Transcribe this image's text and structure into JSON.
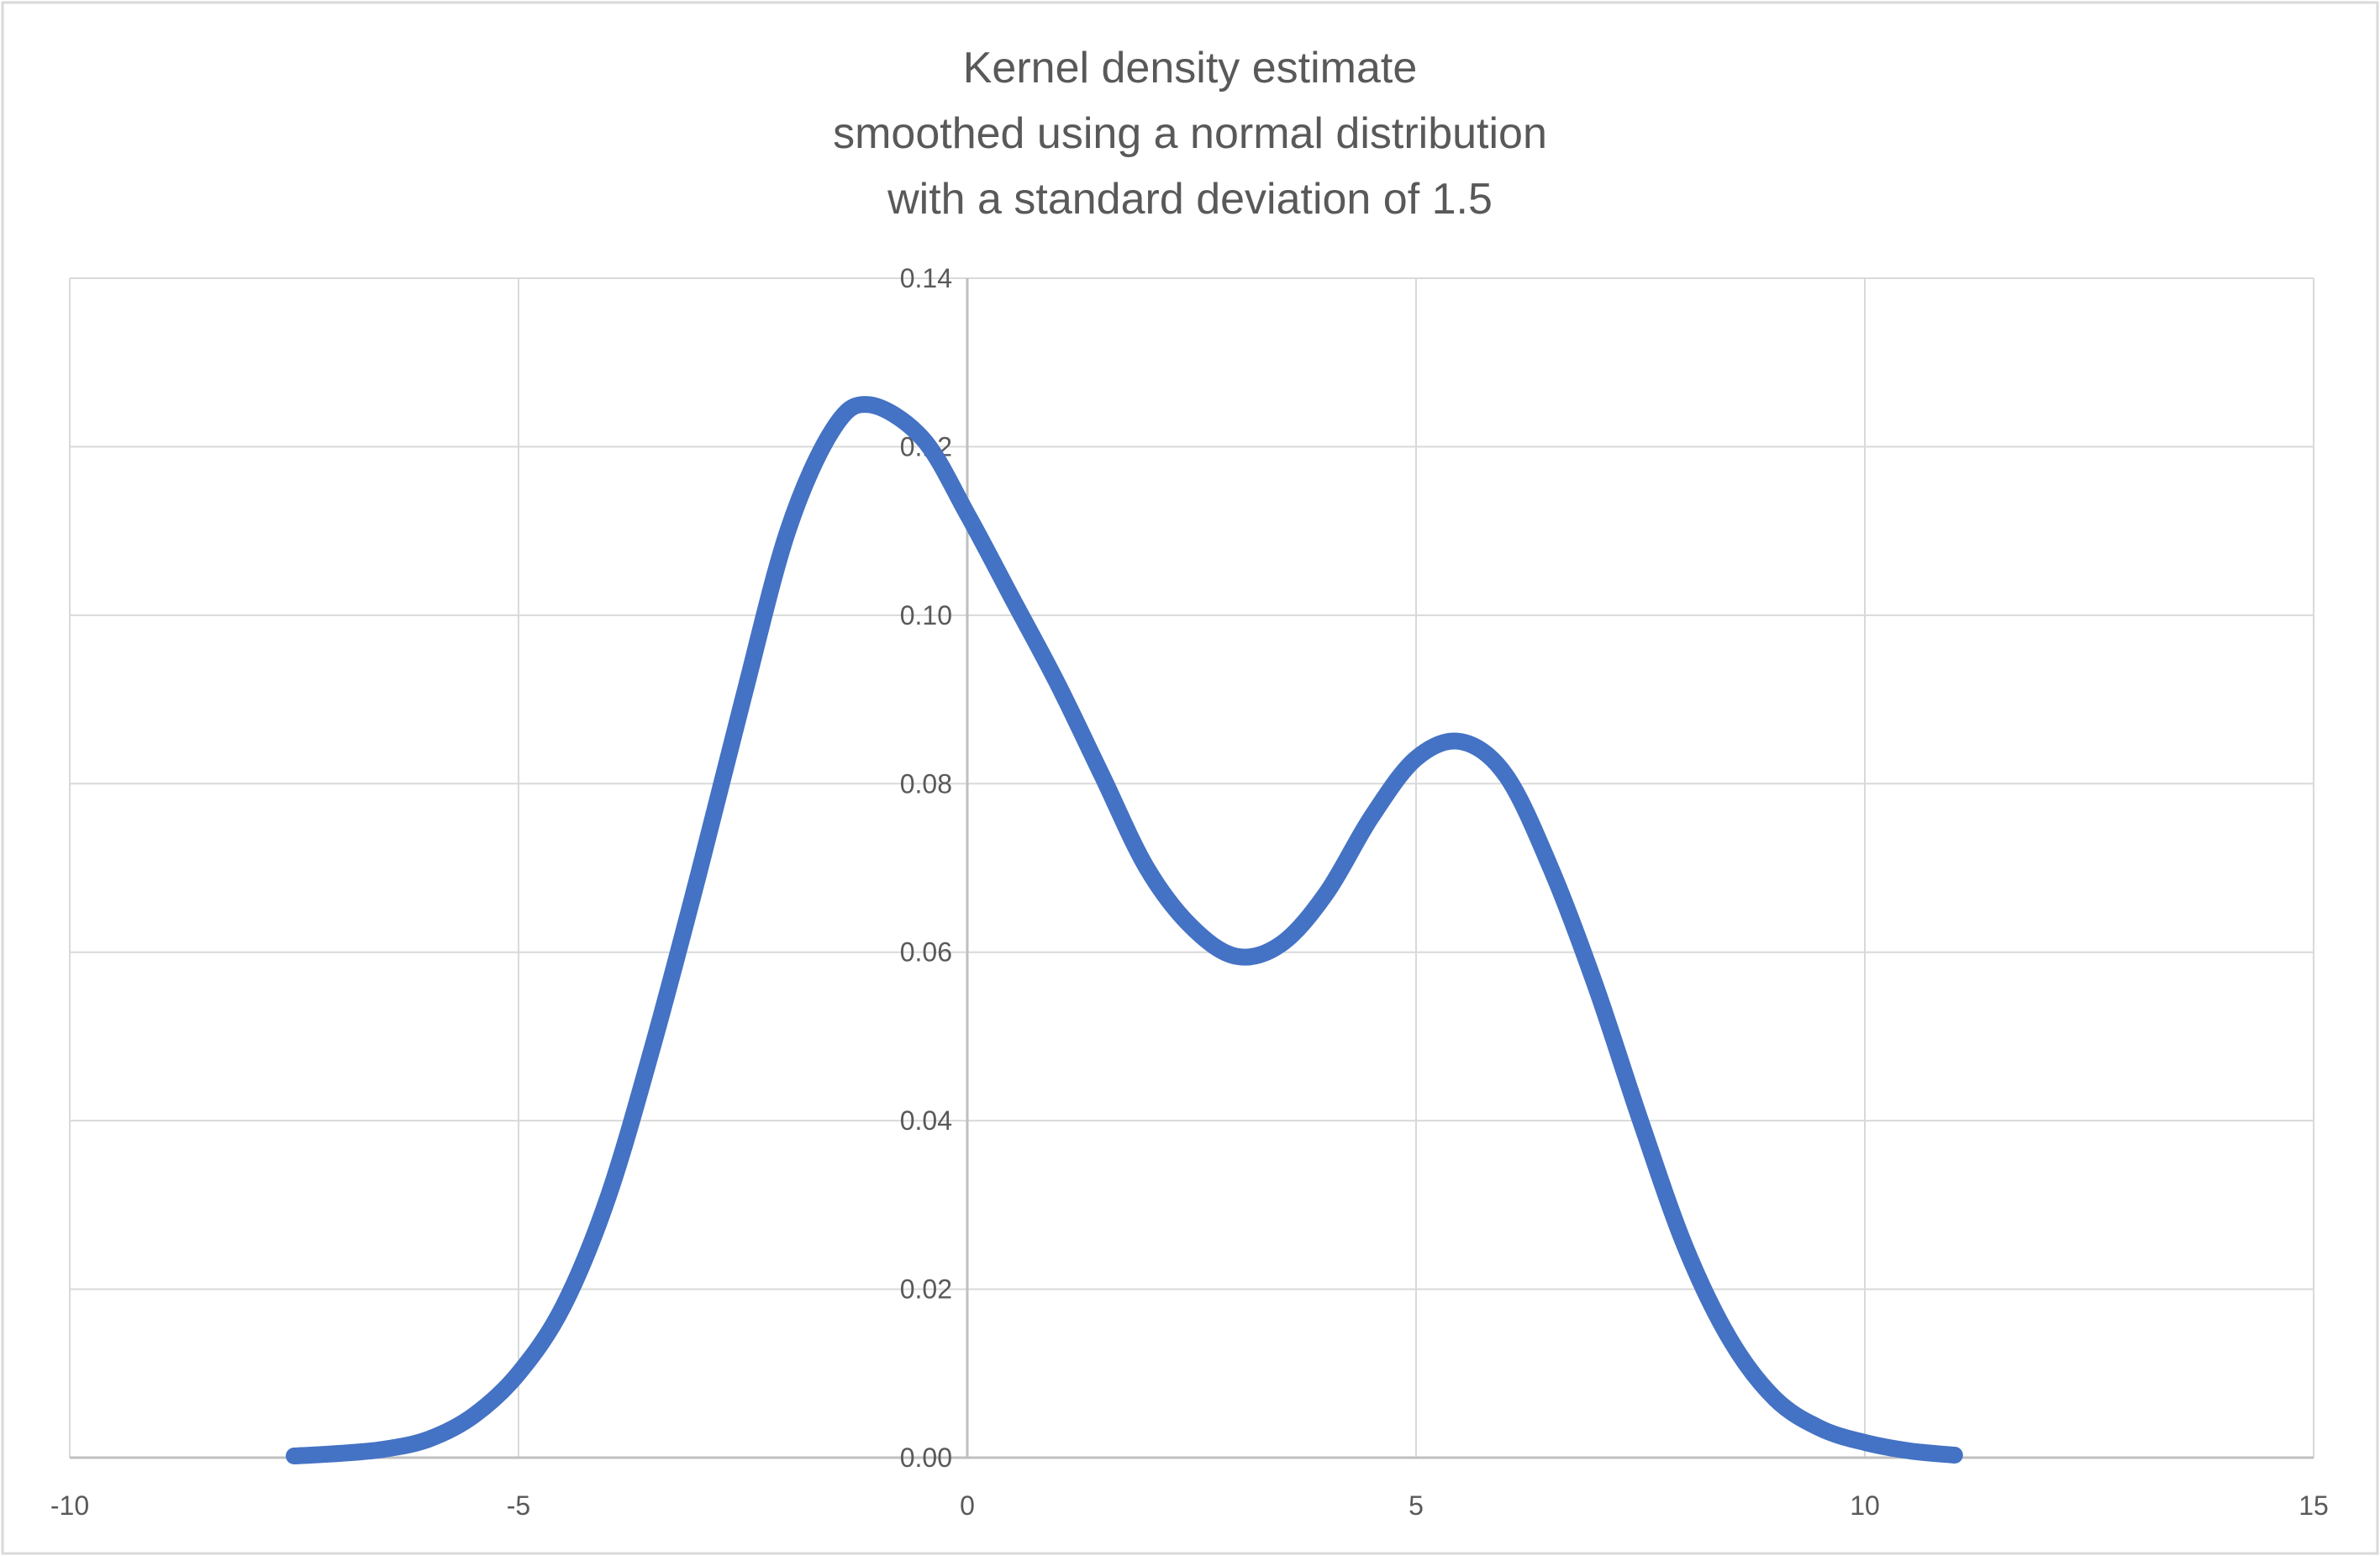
{
  "chart_data": {
    "type": "line",
    "title": [
      "Kernel density estimate",
      "smoothed using a normal distribution",
      "with a standard deviation of 1.5"
    ],
    "xlabel": "",
    "ylabel": "",
    "xlim": [
      -10,
      15
    ],
    "ylim": [
      0,
      0.14
    ],
    "xticks": [
      "-10",
      "-5",
      "0",
      "5",
      "10",
      "15"
    ],
    "yticks": [
      "0.00",
      "0.02",
      "0.04",
      "0.06",
      "0.08",
      "0.10",
      "0.12",
      "0.14"
    ],
    "grid": true,
    "legend": "none",
    "series_color": "#4472C4",
    "series": [
      {
        "x": [
          -7.5,
          -7,
          -6.5,
          -6,
          -5.5,
          -5,
          -4.5,
          -4,
          -3.5,
          -3,
          -2.5,
          -2,
          -1.5,
          -1.1,
          -0.5,
          0,
          0.5,
          1,
          1.5,
          2,
          2.5,
          3,
          3.5,
          4,
          4.5,
          5,
          5.5,
          6,
          6.5,
          7,
          7.5,
          8,
          8.5,
          9,
          9.5,
          10,
          10.5,
          11
        ],
        "y": [
          0.0002,
          0.0005,
          0.001,
          0.0022,
          0.005,
          0.01,
          0.018,
          0.031,
          0.049,
          0.069,
          0.09,
          0.11,
          0.122,
          0.125,
          0.121,
          0.112,
          0.102,
          0.092,
          0.081,
          0.07,
          0.063,
          0.0595,
          0.061,
          0.067,
          0.076,
          0.083,
          0.085,
          0.081,
          0.07,
          0.056,
          0.04,
          0.025,
          0.014,
          0.007,
          0.0035,
          0.0018,
          0.0008,
          0.0003
        ]
      }
    ]
  }
}
